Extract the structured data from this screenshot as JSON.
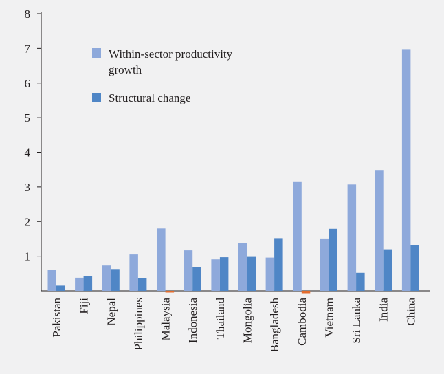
{
  "chart_data": {
    "type": "bar",
    "categories": [
      "Pakistan",
      "Fiji",
      "Nepal",
      "Philippines",
      "Malaysia",
      "Indonesia",
      "Thailand",
      "Mongolia",
      "Bangladesh",
      "Cambodia",
      "Vietnam",
      "Sri Lanka",
      "India",
      "China"
    ],
    "series": [
      {
        "name": "Within-sector productivity growth",
        "values": [
          0.6,
          0.38,
          0.73,
          1.05,
          1.8,
          1.17,
          0.91,
          1.38,
          0.96,
          3.14,
          1.51,
          3.07,
          3.47,
          6.98
        ],
        "color": "#8ea9db"
      },
      {
        "name": "Structural change",
        "values": [
          0.15,
          0.42,
          0.63,
          0.37,
          -0.03,
          0.68,
          0.97,
          0.98,
          1.52,
          -0.07,
          1.79,
          0.52,
          1.2,
          1.33
        ],
        "color": "#4f86c6",
        "negative_color": "#e36c2d"
      }
    ],
    "legend_lines": [
      [
        "Within-sector productivity",
        "growth"
      ],
      [
        "Structural change"
      ]
    ],
    "yticks": [
      1,
      2,
      3,
      4,
      5,
      6,
      7,
      8
    ],
    "ylim": [
      -0.3,
      8
    ],
    "legend_position": "upper-left inside plot",
    "grid": false,
    "title": "",
    "xlabel": "",
    "ylabel": ""
  }
}
